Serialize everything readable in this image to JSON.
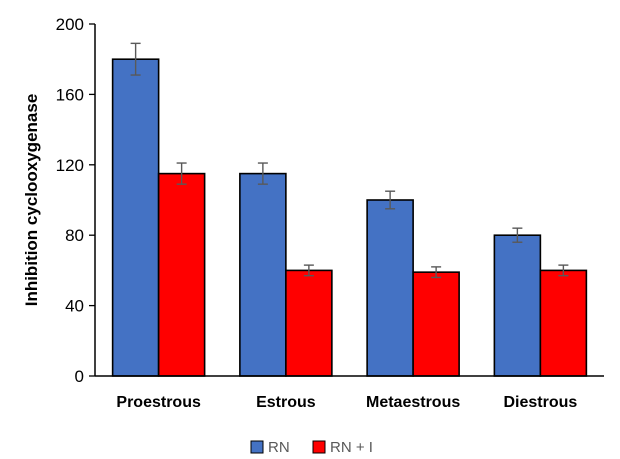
{
  "chart_data": {
    "type": "bar",
    "title": "",
    "xlabel": "",
    "ylabel": "Inhibition cyclooxygenase",
    "categories": [
      "Proestrous",
      "Estrous",
      "Metaestrous",
      "Diestrous"
    ],
    "series": [
      {
        "name": "RN",
        "values": [
          180,
          115,
          100,
          80
        ],
        "errors": [
          9,
          6,
          5,
          4
        ],
        "color": "#4472C4"
      },
      {
        "name": "RN + I",
        "values": [
          115,
          60,
          59,
          60
        ],
        "errors": [
          6,
          3,
          3,
          3
        ],
        "color": "#FF0000"
      }
    ],
    "ylim": [
      0,
      200
    ],
    "yticks": [
      0,
      40,
      80,
      120,
      160,
      200
    ],
    "grid": false,
    "legend": "bottom-center"
  }
}
